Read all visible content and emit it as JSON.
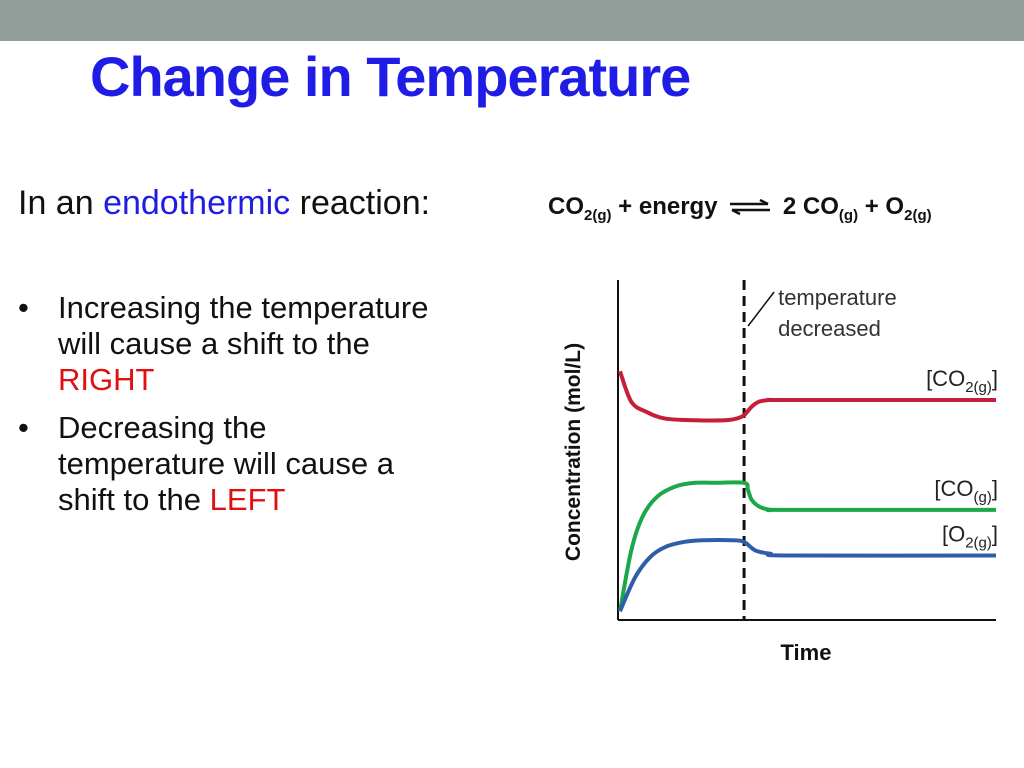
{
  "slide": {
    "title": "Change in Temperature",
    "intro": {
      "prefix": "In an",
      "highlight": "endothermic",
      "suffix": "reaction:"
    },
    "equation": {
      "co2": "CO",
      "co2_sub_num": "2",
      "co2_sub_state": "(g)",
      "plus1": "+ energy",
      "co": "2 CO",
      "co_sub": "(g)",
      "plus2": "+ O",
      "o2_sub_num": "2",
      "o2_sub_state": "(g)"
    },
    "bullets": [
      {
        "marker": "•",
        "line1": "Increasing the temperature",
        "line2": "will cause a shift to the",
        "emph": "RIGHT"
      },
      {
        "marker": "•",
        "line1": "Decreasing the",
        "line2": "temperature will cause a",
        "line3": "shift to the",
        "emph": "LEFT"
      }
    ],
    "colors": {
      "title": "#1f1ce6",
      "highlight": "#1f1ce6",
      "emphasis": "#e01010",
      "band": "#949f9b"
    }
  },
  "chart_data": {
    "type": "line",
    "xlabel": "Time",
    "ylabel": "Concentration (mol/L)",
    "annotation": "temperature decreased",
    "event_time": 0.33,
    "xlim": [
      0,
      1
    ],
    "ylim": [
      0,
      1
    ],
    "series": [
      {
        "name": "[CO2(g)]",
        "label_main": "[CO",
        "label_sub": "2(g)",
        "label_end": "]",
        "color": "#c41e3a",
        "x": [
          0.0,
          0.03,
          0.07,
          0.12,
          0.2,
          0.28,
          0.31,
          0.33,
          0.35,
          0.37,
          0.4,
          0.45,
          1.0
        ],
        "y": [
          0.73,
          0.64,
          0.61,
          0.59,
          0.585,
          0.585,
          0.59,
          0.6,
          0.625,
          0.64,
          0.645,
          0.645,
          0.645
        ]
      },
      {
        "name": "[CO(g)]",
        "label_main": "[CO",
        "label_sub": "(g)",
        "label_end": "]",
        "color": "#1aa849",
        "x": [
          0.0,
          0.03,
          0.06,
          0.1,
          0.15,
          0.2,
          0.25,
          0.33,
          0.34,
          0.35,
          0.37,
          0.4,
          0.45,
          1.0
        ],
        "y": [
          0.02,
          0.2,
          0.3,
          0.36,
          0.39,
          0.4,
          0.4,
          0.4,
          0.38,
          0.35,
          0.33,
          0.32,
          0.32,
          0.32
        ]
      },
      {
        "name": "[O2(g)]",
        "label_main": "[O",
        "label_sub": "2(g)",
        "label_end": "]",
        "color": "#2e5ea8",
        "x": [
          0.0,
          0.04,
          0.08,
          0.12,
          0.17,
          0.22,
          0.3,
          0.33,
          0.36,
          0.4,
          0.45,
          1.0
        ],
        "y": [
          0.02,
          0.12,
          0.18,
          0.21,
          0.225,
          0.23,
          0.23,
          0.225,
          0.2,
          0.19,
          0.185,
          0.185
        ]
      }
    ]
  }
}
